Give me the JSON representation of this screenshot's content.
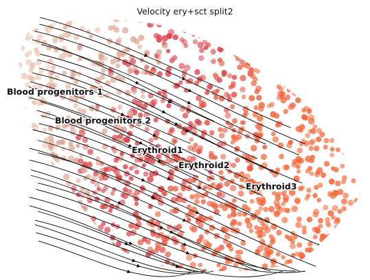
{
  "title": "Velocity ery+sct split2",
  "clusters": [
    {
      "key": "bp1",
      "label": "Blood progenitors 1"
    },
    {
      "key": "bp2",
      "label": "Blood progenitors 2"
    },
    {
      "key": "ery1",
      "label": "Erythroid1"
    },
    {
      "key": "ery2",
      "label": "Erythroid2"
    },
    {
      "key": "ery3",
      "label": "Erythroid3"
    }
  ],
  "colors": {
    "bp1": "#e9c4b0",
    "bp2": "#dca595",
    "ery1": "#d8474f",
    "ery2": "#e45a45",
    "ery3": "#f26a3c",
    "stream": "#000000"
  }
}
